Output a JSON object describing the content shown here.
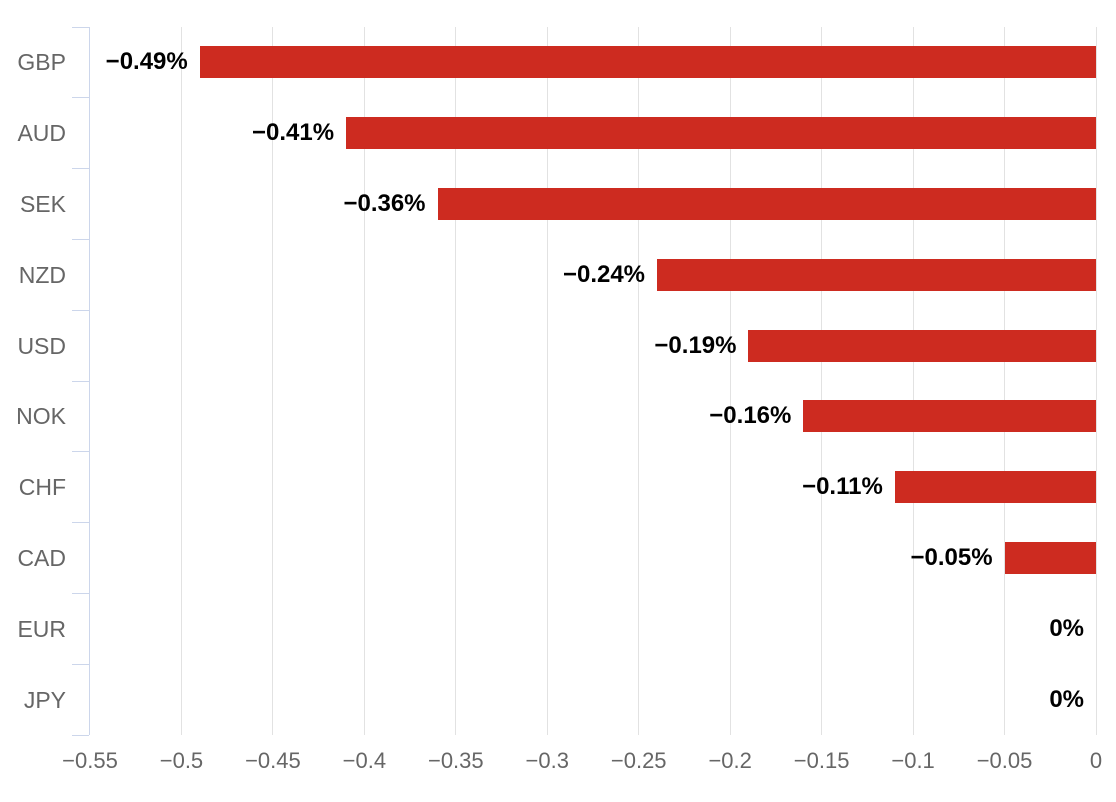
{
  "chart_data": {
    "type": "bar",
    "orientation": "horizontal",
    "title": "",
    "xlabel": "",
    "ylabel": "",
    "categories": [
      "GBP",
      "AUD",
      "SEK",
      "NZD",
      "USD",
      "NOK",
      "CHF",
      "CAD",
      "EUR",
      "JPY"
    ],
    "values": [
      -0.49,
      -0.41,
      -0.36,
      -0.24,
      -0.19,
      -0.16,
      -0.11,
      -0.05,
      0,
      0
    ],
    "data_labels": [
      "−0.49%",
      "−0.41%",
      "−0.36%",
      "−0.24%",
      "−0.19%",
      "−0.16%",
      "−0.11%",
      "−0.05%",
      "0%",
      "0%"
    ],
    "xlim": [
      -0.55,
      0
    ],
    "x_ticks": [
      -0.55,
      -0.5,
      -0.45,
      -0.4,
      -0.35,
      -0.3,
      -0.25,
      -0.2,
      -0.15,
      -0.1,
      -0.05,
      0
    ],
    "x_tick_labels": [
      "−0.55",
      "−0.5",
      "−0.45",
      "−0.4",
      "−0.35",
      "−0.3",
      "−0.25",
      "−0.2",
      "−0.15",
      "−0.1",
      "−0.05",
      "0"
    ],
    "grid": true,
    "legend": false,
    "colors": {
      "bar": "#cd2b20",
      "gridline": "#e2e2e2",
      "axis_line": "#ccd6eb",
      "axis_label": "#666666",
      "data_label": "#000000",
      "background": "#ffffff"
    }
  }
}
